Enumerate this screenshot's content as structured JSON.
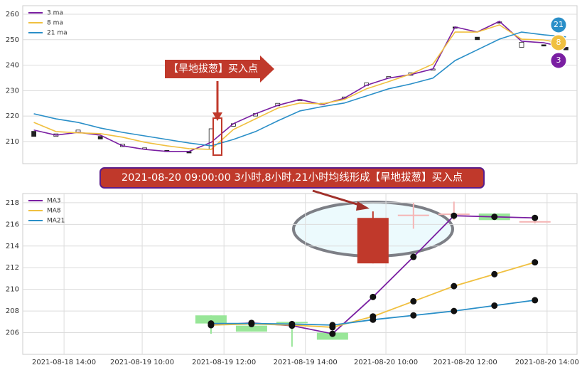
{
  "chart_data": [
    {
      "type": "candlestick",
      "categories": [
        null,
        null,
        null,
        null,
        null,
        null,
        null,
        null,
        null,
        null,
        null,
        null,
        null,
        null,
        null,
        null,
        null,
        null,
        null,
        null,
        null,
        null,
        null,
        null,
        null
      ],
      "candles": {
        "open": [
          214,
          212,
          213.5,
          212,
          208,
          207,
          206.5,
          206,
          207,
          216,
          220,
          224,
          226,
          225,
          227,
          232,
          235,
          236,
          238,
          255,
          251,
          257,
          247,
          248,
          247
        ],
        "close": [
          212,
          213,
          214.5,
          211,
          209,
          207.5,
          206,
          205.5,
          215,
          217,
          221,
          225,
          226.5,
          224.5,
          227.5,
          233,
          235.5,
          237,
          238.5,
          254.5,
          250,
          256.5,
          249,
          247.5,
          246
        ]
      },
      "series": [
        {
          "name": "3 ma",
          "color": "#7a1fa2",
          "values": [
            214.5,
            212.5,
            213.6,
            212.5,
            208.3,
            206.9,
            206.1,
            206.1,
            209.7,
            217.0,
            220.9,
            224.2,
            226.5,
            224.5,
            227.0,
            232.1,
            234.9,
            236.3,
            238.5,
            255.0,
            253.0,
            257.2,
            249.4,
            248.8,
            246.9
          ]
        },
        {
          "name": "8 ma",
          "color": "#f0c040",
          "values": [
            217.5,
            213.9,
            213.4,
            213.1,
            211.7,
            209.7,
            208.3,
            207.2,
            206.9,
            214.7,
            218.9,
            223.1,
            225.1,
            224.8,
            226.5,
            230.7,
            233.5,
            236.5,
            240.4,
            253.0,
            253.0,
            255.8,
            250.2,
            249.9,
            248.3
          ]
        },
        {
          "name": "21 ma",
          "color": "#2a8fc8",
          "values": [
            220.9,
            218.9,
            217.5,
            215.3,
            213.6,
            212.2,
            210.8,
            209.4,
            208.3,
            210.8,
            213.9,
            218.1,
            222.0,
            223.7,
            225.1,
            227.9,
            230.7,
            232.6,
            234.9,
            241.8,
            246.0,
            250.2,
            253.0,
            251.9,
            251.1
          ]
        }
      ],
      "ylim": [
        201.3,
        263.35
      ],
      "yticks": [
        210,
        220,
        230,
        240,
        250,
        260
      ],
      "grid": true,
      "legend": "upper left",
      "annotation": "【旱地拔葱】买入点",
      "badges": [
        {
          "text": "21",
          "color": "#2a8fc8"
        },
        {
          "text": "8",
          "color": "#f0c040"
        },
        {
          "text": "3",
          "color": "#7a1fa2"
        }
      ]
    },
    {
      "type": "candlestick",
      "title": "2021-08-20 09:00:00 3小时,8小时,21小时均线形成【旱地拔葱】买入点",
      "x": [
        0,
        1,
        2,
        3,
        4,
        5,
        6,
        7,
        8
      ],
      "candles": {
        "open": [
          207.6,
          206.65,
          207.0,
          206.0,
          212.4,
          216.9,
          217.0,
          217.0,
          216.3
        ],
        "close": [
          206.85,
          206.1,
          206.95,
          205.35,
          216.6,
          216.85,
          216.95,
          216.4,
          216.25
        ],
        "high": [
          207.6,
          206.65,
          207.0,
          206.0,
          217.2,
          218.0,
          218.1,
          217.0,
          216.5
        ],
        "low": [
          205.9,
          206.1,
          204.7,
          205.35,
          212.4,
          215.6,
          216.4,
          216.4,
          216.1
        ],
        "colors": [
          "#98e698",
          "#98e698",
          "#98e698",
          "#98e698",
          "#c0392b",
          "#f5b5b5",
          "#f5b5b5",
          "#98e698",
          "#f5b5b5"
        ]
      },
      "series": [
        {
          "name": "MA3",
          "color": "#7a1fa2",
          "values": [
            206.7,
            206.9,
            206.65,
            205.9,
            209.3,
            213.0,
            216.8,
            216.7,
            216.6
          ]
        },
        {
          "name": "MA8",
          "color": "#f0c040",
          "values": [
            206.7,
            206.8,
            206.7,
            206.5,
            207.5,
            208.9,
            210.3,
            211.4,
            212.5
          ]
        },
        {
          "name": "MA21",
          "color": "#2a8fc8",
          "values": [
            206.85,
            206.85,
            206.8,
            206.7,
            207.2,
            207.6,
            208.0,
            208.5,
            209.0
          ]
        }
      ],
      "xlim": [
        -4.65,
        9.04
      ],
      "xticks": [
        {
          "value": -3.63,
          "label": "2021-08-18 14:00"
        },
        {
          "value": -1.7,
          "label": "2021-08-19 10:00"
        },
        {
          "value": 0.32,
          "label": "2021-08-19 12:00"
        },
        {
          "value": 2.33,
          "label": "2021-08-19 14:00"
        },
        {
          "value": 4.32,
          "label": "2021-08-20 10:00"
        },
        {
          "value": 6.28,
          "label": "2021-08-20 12:00"
        },
        {
          "value": 8.3,
          "label": "2021-08-20 14:00"
        }
      ],
      "ylim": [
        204.0,
        218.85
      ],
      "yticks": [
        206,
        208,
        210,
        212,
        214,
        216,
        218
      ],
      "grid": true,
      "legend": "upper left"
    }
  ]
}
